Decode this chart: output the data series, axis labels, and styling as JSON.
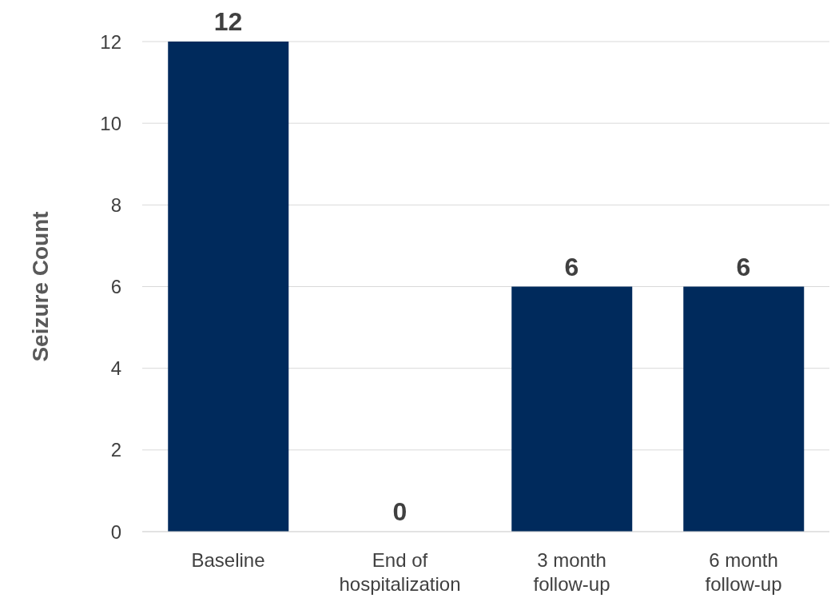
{
  "chart_data": {
    "type": "bar",
    "ylabel": "Seizure Count",
    "categories": [
      "Baseline",
      "End of hospitalization",
      "3 month follow-up",
      "6 month follow-up"
    ],
    "values": [
      12,
      0,
      6,
      6
    ],
    "color": "#002a5c",
    "ylim": [
      0,
      12
    ],
    "yticks": [
      0,
      2,
      4,
      6,
      8,
      10,
      12
    ],
    "grid": "y",
    "data_labels": true
  }
}
